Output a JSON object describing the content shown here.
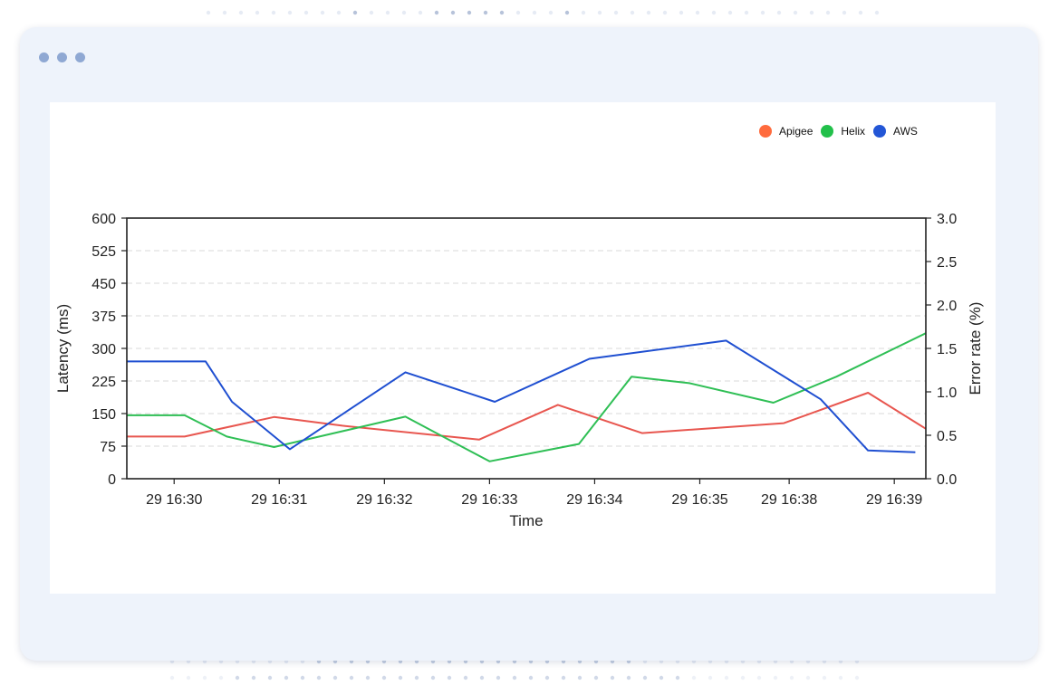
{
  "window": {
    "controls": [
      "dot",
      "dot",
      "dot"
    ]
  },
  "colors": {
    "Apigee": "#e8564f",
    "Helix": "#2fbf55",
    "AWS": "#1f4fd1",
    "window_bg": "#eef3fb",
    "panel_bg": "#ffffff"
  },
  "legend": {
    "items": [
      {
        "label": "Apigee",
        "swatch": "#ff6b3d"
      },
      {
        "label": "Helix",
        "swatch": "#22c04a"
      },
      {
        "label": "AWS",
        "swatch": "#2356d6"
      }
    ]
  },
  "chart_data": {
    "type": "line",
    "xlabel": "Time",
    "ylabel": "Latency (ms)",
    "y2label": "Error rate (%)",
    "ylim": [
      0,
      600
    ],
    "y2lim": [
      0,
      3.0
    ],
    "yticks": [
      "0",
      "75",
      "150",
      "225",
      "300",
      "375",
      "450",
      "525",
      "600"
    ],
    "y2ticks": [
      "0.0",
      "0.5",
      "1.0",
      "1.5",
      "2.0",
      "2.5",
      "3.0"
    ],
    "grid": true,
    "legend_position": "top-right",
    "xticks": [
      {
        "label": "29 16:30",
        "t": 0.5
      },
      {
        "label": "29 16:31",
        "t": 1.5
      },
      {
        "label": "29 16:32",
        "t": 2.5
      },
      {
        "label": "29 16:33",
        "t": 3.5
      },
      {
        "label": "29 16:34",
        "t": 4.5
      },
      {
        "label": "29 16:35",
        "t": 5.5
      },
      {
        "label": "29 16:38",
        "t": 6.35
      },
      {
        "label": "29 16:39",
        "t": 7.35
      }
    ],
    "x_range": [
      0.05,
      7.65
    ],
    "series": [
      {
        "name": "Apigee",
        "points": [
          [
            0.05,
            97
          ],
          [
            0.6,
            97
          ],
          [
            1.45,
            142
          ],
          [
            2.1,
            122
          ],
          [
            3.4,
            90
          ],
          [
            4.15,
            170
          ],
          [
            4.95,
            105
          ],
          [
            6.3,
            128
          ],
          [
            7.1,
            198
          ],
          [
            7.65,
            115
          ]
        ]
      },
      {
        "name": "Helix",
        "points": [
          [
            0.05,
            146
          ],
          [
            0.6,
            146
          ],
          [
            1.0,
            97
          ],
          [
            1.45,
            73
          ],
          [
            2.7,
            143
          ],
          [
            3.5,
            40
          ],
          [
            4.35,
            80
          ],
          [
            4.85,
            235
          ],
          [
            5.4,
            220
          ],
          [
            6.2,
            175
          ],
          [
            6.8,
            235
          ],
          [
            7.65,
            335
          ]
        ]
      },
      {
        "name": "AWS",
        "points": [
          [
            0.05,
            270
          ],
          [
            0.8,
            270
          ],
          [
            1.05,
            177
          ],
          [
            1.6,
            68
          ],
          [
            2.7,
            245
          ],
          [
            3.55,
            177
          ],
          [
            4.45,
            276
          ],
          [
            5.75,
            318
          ],
          [
            6.65,
            183
          ],
          [
            7.1,
            65
          ],
          [
            7.55,
            61
          ]
        ]
      }
    ]
  }
}
